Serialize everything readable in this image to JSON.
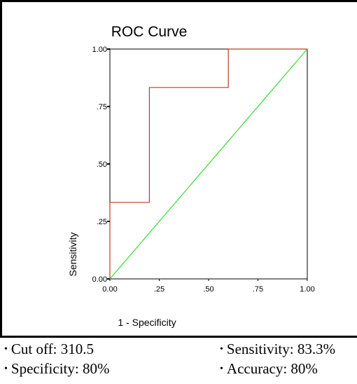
{
  "chart_data": {
    "type": "line",
    "title": "ROC Curve",
    "xlabel": "1 - Specificity",
    "ylabel": "Sensitivity",
    "xlim": [
      0,
      1
    ],
    "ylim": [
      0,
      1
    ],
    "x_ticks": [
      {
        "value": 0,
        "label": "0.00"
      },
      {
        "value": 0.25,
        "label": ".25"
      },
      {
        "value": 0.5,
        "label": ".50"
      },
      {
        "value": 0.75,
        "label": ".75"
      },
      {
        "value": 1,
        "label": "1.00"
      }
    ],
    "y_ticks": [
      {
        "value": 0,
        "label": "0.00"
      },
      {
        "value": 0.25,
        "label": ".25"
      },
      {
        "value": 0.5,
        "label": ".50"
      },
      {
        "value": 0.75,
        "label": ".75"
      },
      {
        "value": 1,
        "label": "1.00"
      }
    ],
    "grid": false,
    "series": [
      {
        "color": "#c0392b",
        "step": true,
        "x": [
          0,
          0,
          0.2,
          0.2,
          0.6,
          0.6,
          1.0
        ],
        "y": [
          0,
          0.333,
          0.333,
          0.833,
          0.833,
          1.0,
          1.0
        ]
      },
      {
        "color": "#33dd33",
        "step": false,
        "x": [
          0,
          1
        ],
        "y": [
          0,
          1
        ]
      }
    ]
  },
  "summary": {
    "left": [
      "Cut off: 310.5",
      "Specificity: 80%"
    ],
    "right": [
      "Sensitivity: 83.3%",
      "Accuracy: 80%"
    ],
    "bullet": "•"
  }
}
